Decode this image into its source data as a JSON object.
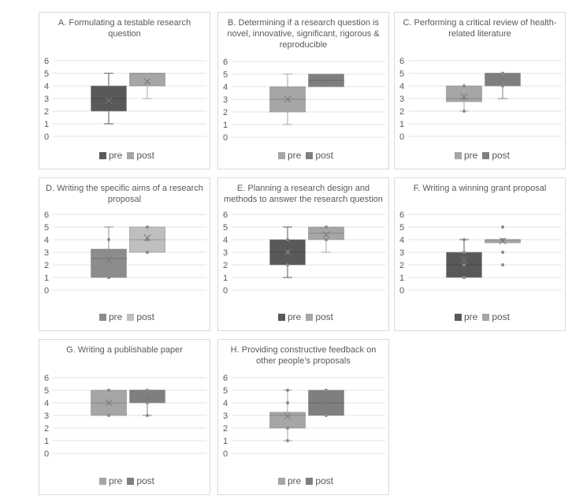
{
  "chart_data": [
    {
      "type": "box",
      "title": "A. Formulating a testable research question",
      "ylim": [
        0,
        6
      ],
      "yticks": [
        0,
        1,
        2,
        3,
        4,
        5,
        6
      ],
      "legend_order": [
        "pre",
        "post"
      ],
      "series": [
        {
          "name": "pre",
          "color": "#595959",
          "min": 1,
          "q1": 2,
          "median": 3,
          "q3": 4,
          "max": 5,
          "mean": 2.85,
          "points": []
        },
        {
          "name": "post",
          "color": "#a6a6a6",
          "min": 3,
          "q1": 4,
          "median": 5,
          "q3": 5,
          "max": 5,
          "mean": 4.35,
          "points": []
        }
      ]
    },
    {
      "type": "box",
      "title": "B. Determining if a research question is novel, innovative, significant, rigorous & reproducible",
      "ylim": [
        0,
        6
      ],
      "yticks": [
        0,
        1,
        2,
        3,
        4,
        5,
        6
      ],
      "series": [
        {
          "name": "pre",
          "color": "#a6a6a6",
          "min": 1,
          "q1": 2,
          "median": 3,
          "q3": 4,
          "max": 5,
          "mean": 3,
          "points": []
        },
        {
          "name": "post",
          "color": "#7f7f7f",
          "min": 4,
          "q1": 4,
          "median": 4.5,
          "q3": 5,
          "max": 5,
          "mean": 4.5,
          "points": []
        }
      ]
    },
    {
      "type": "box",
      "title": "C. Performing a critical review of health-related literature",
      "ylim": [
        0,
        6
      ],
      "yticks": [
        0,
        1,
        2,
        3,
        4,
        5,
        6
      ],
      "series": [
        {
          "name": "pre",
          "color": "#a6a6a6",
          "min": 2,
          "q1": 2.75,
          "median": 3,
          "q3": 4,
          "max": 4,
          "mean": 3.15,
          "points": [
            2,
            3,
            4
          ]
        },
        {
          "name": "post",
          "color": "#7f7f7f",
          "min": 3,
          "q1": 4,
          "median": 5,
          "q3": 5,
          "max": 5,
          "mean": 4.5,
          "points": [
            4,
            5
          ]
        }
      ]
    },
    {
      "type": "box",
      "title": "D. Writing the specific aims of a research proposal",
      "ylim": [
        0,
        6
      ],
      "yticks": [
        0,
        1,
        2,
        3,
        4,
        5,
        6
      ],
      "series": [
        {
          "name": "pre",
          "color": "#8c8c8c",
          "min": 1,
          "q1": 1,
          "median": 2.5,
          "q3": 3.25,
          "max": 5,
          "mean": 2.4,
          "points": [
            1,
            2,
            3,
            4
          ]
        },
        {
          "name": "post",
          "color": "#bfbfbf",
          "min": 3,
          "q1": 3,
          "median": 4,
          "q3": 5,
          "max": 5,
          "mean": 4.15,
          "points": [
            3,
            4,
            5
          ]
        }
      ]
    },
    {
      "type": "box",
      "title": "E. Planning a research design and methods to answer the research question",
      "ylim": [
        0,
        6
      ],
      "yticks": [
        0,
        1,
        2,
        3,
        4,
        5,
        6
      ],
      "series": [
        {
          "name": "pre",
          "color": "#595959",
          "min": 1,
          "q1": 2,
          "median": 3,
          "q3": 4,
          "max": 5,
          "mean": 3,
          "points": [
            2,
            3,
            4
          ]
        },
        {
          "name": "post",
          "color": "#a6a6a6",
          "min": 3,
          "q1": 4,
          "median": 4.5,
          "q3": 5,
          "max": 5,
          "mean": 4.4,
          "points": [
            4,
            5
          ]
        }
      ]
    },
    {
      "type": "box",
      "title": "F. Writing a winning grant proposal",
      "ylim": [
        0,
        6
      ],
      "yticks": [
        0,
        1,
        2,
        3,
        4,
        5,
        6
      ],
      "series": [
        {
          "name": "pre",
          "color": "#595959",
          "min": 1,
          "q1": 1,
          "median": 2,
          "q3": 3,
          "max": 4,
          "mean": 2.4,
          "points": [
            1,
            2,
            3,
            4
          ]
        },
        {
          "name": "post",
          "color": "#a6a6a6",
          "min": 3.75,
          "q1": 3.75,
          "median": 4,
          "q3": 4,
          "max": 4,
          "mean": 3.9,
          "points": [
            2,
            3,
            4,
            5
          ]
        }
      ]
    },
    {
      "type": "box",
      "title": "G. Writing a publishable paper",
      "ylim": [
        0,
        6
      ],
      "yticks": [
        0,
        1,
        2,
        3,
        4,
        5,
        6
      ],
      "series": [
        {
          "name": "pre",
          "color": "#a6a6a6",
          "min": 3,
          "q1": 3,
          "median": 4,
          "q3": 5,
          "max": 5,
          "mean": 4,
          "points": [
            3,
            5
          ]
        },
        {
          "name": "post",
          "color": "#7f7f7f",
          "min": 3,
          "q1": 4,
          "median": 5,
          "q3": 5,
          "max": 5,
          "mean": 4.4,
          "points": [
            3,
            4,
            5
          ]
        }
      ]
    },
    {
      "type": "box",
      "title": "H. Providing constructive feedback on other people’s proposals",
      "ylim": [
        0,
        6
      ],
      "yticks": [
        0,
        1,
        2,
        3,
        4,
        5,
        6
      ],
      "series": [
        {
          "name": "pre",
          "color": "#a6a6a6",
          "min": 1,
          "q1": 2,
          "median": 3,
          "q3": 3.25,
          "max": 5,
          "mean": 2.95,
          "points": [
            1,
            2,
            4,
            5
          ]
        },
        {
          "name": "post",
          "color": "#7f7f7f",
          "min": 3,
          "q1": 3,
          "median": 4,
          "q3": 5,
          "max": 5,
          "mean": 4,
          "points": [
            3,
            5
          ]
        }
      ]
    }
  ]
}
